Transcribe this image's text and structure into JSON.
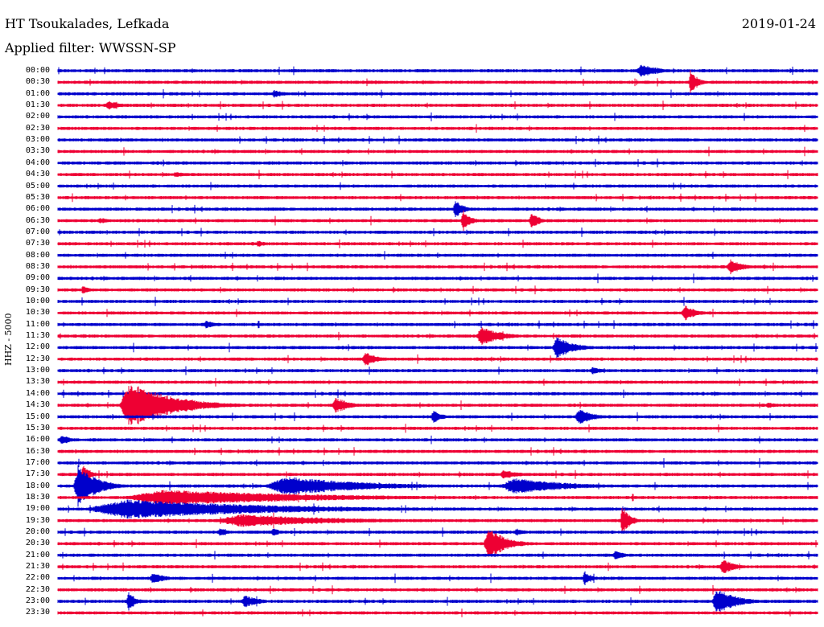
{
  "header": {
    "station": "HT Tsoukalades, Lefkada",
    "date": "2019-01-24",
    "filter": "Applied filter: WWSSN-SP"
  },
  "channel": "HHZ - 5000",
  "colors": {
    "a": "#0000cc",
    "b": "#ee0033"
  },
  "times": [
    "00:00",
    "00:30",
    "01:00",
    "01:30",
    "02:00",
    "02:30",
    "03:00",
    "03:30",
    "04:00",
    "04:30",
    "05:00",
    "05:30",
    "06:00",
    "06:30",
    "07:00",
    "07:30",
    "08:00",
    "08:30",
    "09:00",
    "09:30",
    "10:00",
    "10:30",
    "11:00",
    "11:30",
    "12:00",
    "12:30",
    "13:00",
    "13:30",
    "14:00",
    "14:30",
    "15:00",
    "15:30",
    "16:00",
    "16:30",
    "17:00",
    "17:30",
    "18:00",
    "18:30",
    "19:00",
    "19:30",
    "20:00",
    "20:30",
    "21:00",
    "21:30",
    "22:00",
    "22:30",
    "23:00",
    "23:30"
  ],
  "events": [
    [
      [
        0.76,
        0.06,
        8
      ]
    ],
    [
      [
        0.83,
        0.01,
        14
      ]
    ],
    [
      [
        0.28,
        0.03,
        5
      ]
    ],
    [
      [
        0.06,
        0.04,
        6
      ]
    ],
    [],
    [],
    [],
    [],
    [],
    [
      [
        0.15,
        0.03,
        4
      ]
    ],
    [],
    [],
    [
      [
        0.52,
        0.01,
        14
      ]
    ],
    [
      [
        0.05,
        0.03,
        4
      ],
      [
        0.53,
        0.01,
        14
      ],
      [
        0.62,
        0.01,
        12
      ]
    ],
    [],
    [
      [
        0.26,
        0.01,
        5
      ]
    ],
    [],
    [
      [
        0.88,
        0.03,
        10
      ]
    ],
    [],
    [
      [
        0.03,
        0.01,
        6
      ]
    ],
    [],
    [
      [
        0.82,
        0.03,
        10
      ]
    ],
    [
      [
        0.19,
        0.03,
        5
      ]
    ],
    [
      [
        0.55,
        0.06,
        12
      ]
    ],
    [
      [
        0.65,
        0.05,
        14
      ]
    ],
    [
      [
        0.4,
        0.03,
        9
      ]
    ],
    [
      [
        0.7,
        0.02,
        5
      ]
    ],
    [],
    [],
    [
      [
        0.08,
        0.14,
        30
      ],
      [
        0.36,
        0.04,
        10
      ],
      [
        0.93,
        0.03,
        4
      ]
    ],
    [
      [
        0.49,
        0.02,
        8
      ],
      [
        0.68,
        0.04,
        10
      ]
    ],
    [],
    [
      [
        0.0,
        0.03,
        6
      ]
    ],
    [],
    [],
    [
      [
        0.03,
        0.01,
        14
      ],
      [
        0.58,
        0.05,
        6
      ]
    ],
    [
      [
        0.02,
        0.05,
        28
      ],
      [
        0.27,
        0.3,
        12
      ],
      [
        0.58,
        0.2,
        10
      ]
    ],
    [
      [
        0.08,
        0.6,
        10
      ]
    ],
    [
      [
        0.03,
        0.6,
        12
      ]
    ],
    [
      [
        0.2,
        0.4,
        8
      ],
      [
        0.74,
        0.01,
        20
      ]
    ],
    [
      [
        0.21,
        0.01,
        6
      ],
      [
        0.28,
        0.01,
        6
      ],
      [
        0.6,
        0.02,
        5
      ]
    ],
    [
      [
        0.56,
        0.05,
        20
      ]
    ],
    [
      [
        0.73,
        0.02,
        6
      ]
    ],
    [
      [
        0.87,
        0.03,
        10
      ]
    ],
    [
      [
        0.12,
        0.03,
        8
      ],
      [
        0.69,
        0.01,
        10
      ]
    ],
    [],
    [
      [
        0.09,
        0.01,
        12
      ],
      [
        0.24,
        0.04,
        8
      ],
      [
        0.86,
        0.06,
        16
      ]
    ],
    []
  ]
}
